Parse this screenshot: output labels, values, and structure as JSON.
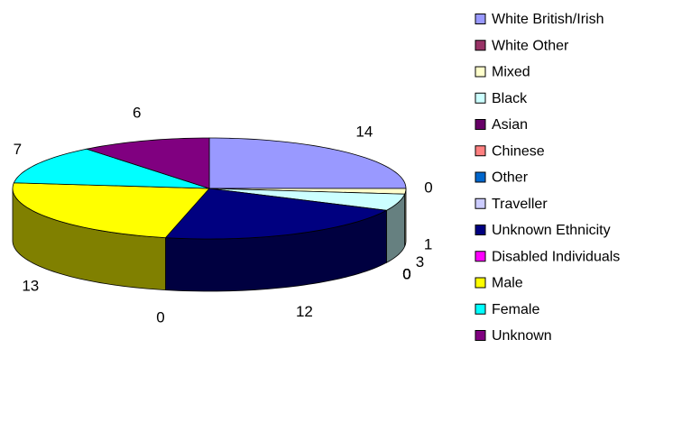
{
  "chart_data": {
    "type": "pie3d",
    "categories": [
      "White British/Irish",
      "White Other",
      "Mixed",
      "Black",
      "Asian",
      "Chinese",
      "Other",
      "Traveller",
      "Unknown Ethnicity",
      "Disabled Individuals",
      "Male",
      "Female",
      "Unknown"
    ],
    "values": [
      14,
      0,
      1,
      3,
      0,
      0,
      0,
      0,
      12,
      0,
      13,
      7,
      6
    ],
    "colors": [
      "#9999ff",
      "#993366",
      "#ffffcc",
      "#ccffff",
      "#660066",
      "#ff8080",
      "#0066cc",
      "#ccccff",
      "#000080",
      "#ff00ff",
      "#ffff00",
      "#00ffff",
      "#800080"
    ],
    "legend": "right"
  }
}
